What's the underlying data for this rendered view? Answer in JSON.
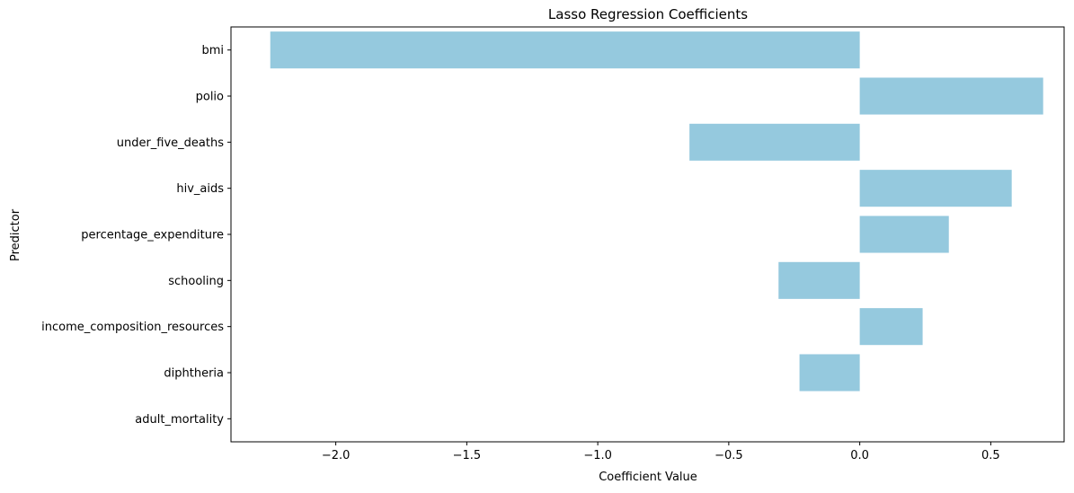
{
  "chart_data": {
    "type": "bar",
    "orientation": "horizontal",
    "title": "Lasso Regression Coefficients",
    "xlabel": "Coefficient Value",
    "ylabel": "Predictor",
    "categories": [
      "bmi",
      "polio",
      "under_five_deaths",
      "hiv_aids",
      "percentage_expenditure",
      "schooling",
      "income_composition_resources",
      "diphtheria",
      "adult_mortality"
    ],
    "values": [
      -2.25,
      0.7,
      -0.65,
      0.58,
      0.34,
      -0.31,
      0.24,
      -0.23,
      0.0
    ],
    "xlim": [
      -2.4,
      0.78
    ],
    "xticks": [
      -2.0,
      -1.5,
      -1.0,
      -0.5,
      0.0,
      0.5
    ],
    "xtick_labels": [
      "−2.0",
      "−1.5",
      "−1.0",
      "−0.5",
      "0.0",
      "0.5"
    ],
    "bar_color": "#95c9de",
    "grid": false,
    "legend": "none"
  }
}
